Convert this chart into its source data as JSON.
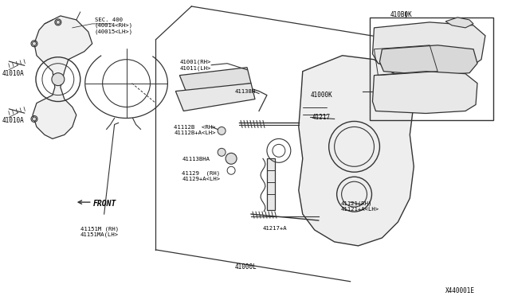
{
  "title": "",
  "bg_color": "#ffffff",
  "line_color": "#333333",
  "label_color": "#000000",
  "fig_width": 6.4,
  "fig_height": 3.72,
  "dpi": 100,
  "labels": {
    "SEC400": "SEC. 400\n(40014<RH>)\n(40015<LH>)",
    "41010A_top": "41010A",
    "41010A_bot": "41010A",
    "41151M": "41151M (RH)\n41151MA(LH>",
    "41001": "41001(RH>\n41011(LH>",
    "41138H": "41138H",
    "41112B": "41112B  <RH>\n41112B+A<LH>",
    "41113BHA": "41113BHA",
    "41129": "41129  (RH)\n41129+A<LH>",
    "41217": "41217",
    "41121": "41121(RH)\n41121+A<LH>",
    "41217A": "41217+A",
    "41000L": "41000L",
    "41000K": "41000K",
    "410B0K": "410B0K",
    "X440001E": "X440001E",
    "FRONT": "FRONT"
  }
}
